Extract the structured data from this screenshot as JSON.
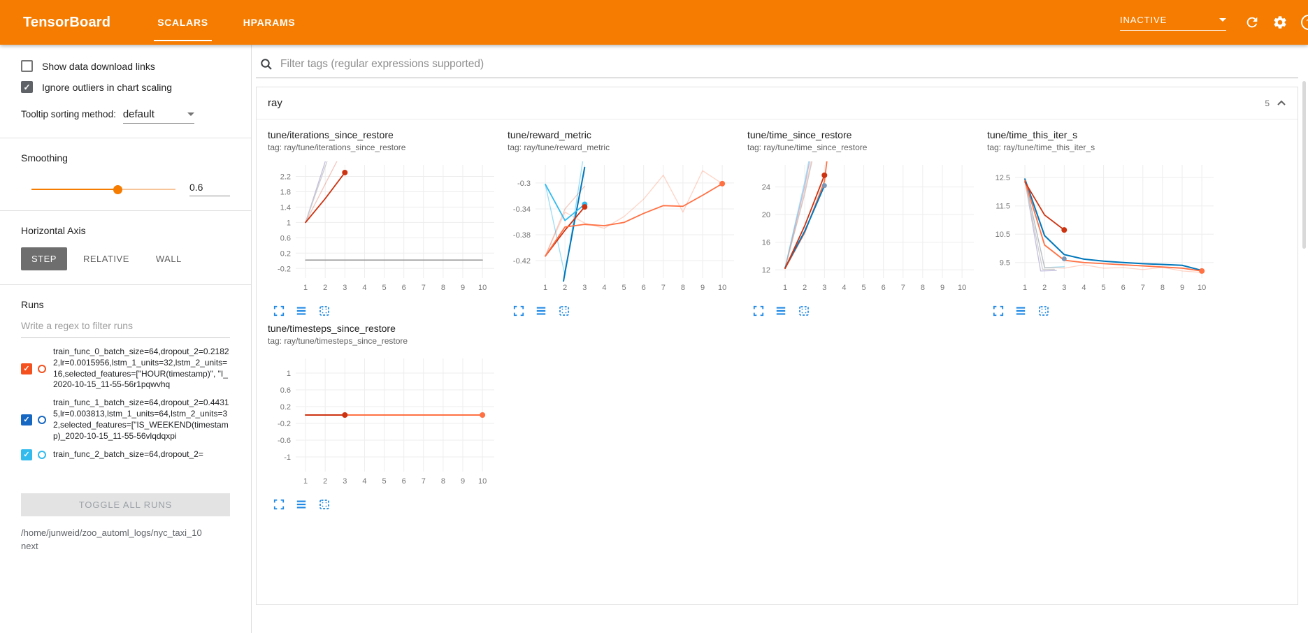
{
  "header": {
    "brand": "TensorBoard",
    "tabs": [
      {
        "label": "SCALARS",
        "active": true
      },
      {
        "label": "HPARAMS",
        "active": false
      }
    ],
    "status": "INACTIVE"
  },
  "colors": {
    "header_orange": "#f57c00",
    "icon_blue": "#1e88e5",
    "run_orange": "#ff7043",
    "run_blue": "#0077bb",
    "run_cyan": "#33bbee",
    "run_red": "#cc3311"
  },
  "sidebar": {
    "checkboxes": [
      {
        "label": "Show data download links",
        "checked": false
      },
      {
        "label": "Ignore outliers in chart scaling",
        "checked": true
      }
    ],
    "tooltip_sort": {
      "label": "Tooltip sorting method:",
      "value": "default"
    },
    "smoothing": {
      "label": "Smoothing",
      "value": "0.6",
      "percent": 60
    },
    "horizontal_axis": {
      "label": "Horizontal Axis",
      "options": [
        {
          "label": "STEP"
        },
        {
          "label": "RELATIVE"
        },
        {
          "label": "WALL"
        }
      ],
      "selected": "STEP"
    },
    "runs": {
      "label": "Runs",
      "filter_placeholder": "Write a regex to filter runs",
      "items": [
        {
          "name": "train_func_0_batch_size=64,dropout_2=0.21822,lr=0.0015956,lstm_1_units=32,lstm_2_units=16,selected_features=[\"HOUR(timestamp)\", \"I_2020-10-15_11-55-56r1pqwvhq",
          "color": "#f4511e",
          "checked": true
        },
        {
          "name": "train_func_1_batch_size=64,dropout_2=0.44315,lr=0.003813,lstm_1_units=64,lstm_2_units=32,selected_features=[\"IS_WEEKEND(timestamp)_2020-10-15_11-55-56vlqdqxpi",
          "color": "#1667c1",
          "checked": true
        },
        {
          "name": "train_func_2_batch_size=64,dropout_2=",
          "color": "#33bbee",
          "checked": true
        }
      ],
      "toggle_all": "TOGGLE ALL RUNS",
      "log_path": "/home/junweid/zoo_automl_logs/nyc_taxi_10next"
    }
  },
  "main": {
    "filter_placeholder": "Filter tags (regular expressions supported)",
    "group": {
      "name": "ray",
      "count": "5"
    }
  },
  "chart_data": [
    {
      "type": "line",
      "title": "tune/iterations_since_restore",
      "subtitle": "tag: ray/tune/iterations_since_restore",
      "xlabel": "",
      "ylabel": "",
      "xticks": [
        1,
        2,
        3,
        4,
        5,
        6,
        7,
        8,
        9,
        10
      ],
      "xlim": [
        0.5,
        10.6
      ],
      "ylim": [
        -0.45,
        2.5
      ],
      "yticks": [
        -0.2,
        0.2,
        0.6,
        1,
        1.4,
        1.8,
        2.2
      ],
      "series": [
        {
          "name": "gray-run",
          "color": "#8a8a8a",
          "opacity": 1,
          "width": 1.4,
          "points": [
            [
              1,
              0.02
            ],
            [
              10,
              0.02
            ]
          ]
        },
        {
          "name": "red-run-raw",
          "color": "#cc3311",
          "opacity": 0.28,
          "width": 1.3,
          "points": [
            [
              1,
              1
            ],
            [
              2,
              2
            ],
            [
              3,
              3
            ]
          ]
        },
        {
          "name": "lavender-run-raw",
          "color": "#b9b3d8",
          "opacity": 0.85,
          "width": 1.3,
          "points": [
            [
              1,
              1
            ],
            [
              1.95,
              2.5
            ],
            [
              2.6,
              3.6
            ]
          ]
        },
        {
          "name": "gray-run-raw",
          "color": "#c9c9c9",
          "opacity": 0.9,
          "width": 1.3,
          "points": [
            [
              1,
              1
            ],
            [
              2.1,
              2.6
            ],
            [
              2.75,
              3.6
            ]
          ]
        },
        {
          "name": "red-run-smoothed",
          "color": "#cc3311",
          "opacity": 1,
          "width": 1.8,
          "points": [
            [
              1,
              1
            ],
            [
              2,
              1.62
            ],
            [
              3,
              2.3
            ]
          ],
          "dot": true
        }
      ]
    },
    {
      "type": "line",
      "title": "tune/reward_metric",
      "subtitle": "tag: ray/tune/reward_metric",
      "xlabel": "",
      "ylabel": "",
      "xticks": [
        1,
        2,
        3,
        4,
        5,
        6,
        7,
        8,
        9,
        10
      ],
      "xlim": [
        0.5,
        10.6
      ],
      "ylim": [
        -0.447,
        -0.272
      ],
      "yticks": [
        -0.42,
        -0.38,
        -0.34,
        -0.3
      ],
      "series": [
        {
          "name": "orange-run-raw",
          "color": "#ff7043",
          "opacity": 0.3,
          "width": 1.3,
          "points": [
            [
              1,
              -0.413
            ],
            [
              2,
              -0.345
            ],
            [
              3,
              -0.362
            ],
            [
              4,
              -0.37
            ],
            [
              5,
              -0.352
            ],
            [
              6,
              -0.325
            ],
            [
              7,
              -0.288
            ],
            [
              8,
              -0.345
            ],
            [
              9,
              -0.281
            ],
            [
              10,
              -0.301
            ]
          ]
        },
        {
          "name": "cyan-run-raw",
          "color": "#33bbee",
          "opacity": 0.5,
          "width": 1.3,
          "points": [
            [
              1,
              -0.302
            ],
            [
              2,
              -0.443
            ],
            [
              3,
              -0.247
            ]
          ]
        },
        {
          "name": "red-run-raw",
          "color": "#cc3311",
          "opacity": 0.25,
          "width": 1.3,
          "points": [
            [
              1,
              -0.413
            ],
            [
              2,
              -0.34
            ],
            [
              3,
              -0.305
            ]
          ]
        },
        {
          "name": "blue-run-smoothed",
          "color": "#0077bb",
          "opacity": 1,
          "width": 2,
          "points": [
            [
              1,
              -0.62
            ],
            [
              2,
              -0.438
            ],
            [
              3,
              -0.276
            ]
          ]
        },
        {
          "name": "cyan-run-smoothed",
          "color": "#33bbee",
          "opacity": 1,
          "width": 1.8,
          "points": [
            [
              1,
              -0.302
            ],
            [
              2,
              -0.358
            ],
            [
              3,
              -0.333
            ]
          ],
          "dot": true
        },
        {
          "name": "red-run-smoothed",
          "color": "#cc3311",
          "opacity": 1,
          "width": 1.8,
          "points": [
            [
              1,
              -0.413
            ],
            [
              2,
              -0.373
            ],
            [
              3,
              -0.337
            ]
          ],
          "dot": true
        },
        {
          "name": "orange-run-smoothed",
          "color": "#ff7043",
          "opacity": 1,
          "width": 1.8,
          "points": [
            [
              1,
              -0.413
            ],
            [
              2,
              -0.368
            ],
            [
              3,
              -0.364
            ],
            [
              4,
              -0.366
            ],
            [
              5,
              -0.361
            ],
            [
              6,
              -0.347
            ],
            [
              7,
              -0.335
            ],
            [
              8,
              -0.336
            ],
            [
              9,
              -0.319
            ],
            [
              10,
              -0.301
            ]
          ],
          "dot": true
        }
      ]
    },
    {
      "type": "line",
      "title": "tune/time_since_restore",
      "subtitle": "tag: ray/tune/time_since_restore",
      "xlabel": "",
      "ylabel": "",
      "xticks": [
        1,
        2,
        3,
        4,
        5,
        6,
        7,
        8,
        9,
        10
      ],
      "xlim": [
        0.5,
        10.6
      ],
      "ylim": [
        10.8,
        27.2
      ],
      "yticks": [
        12,
        16,
        20,
        24
      ],
      "series": [
        {
          "name": "lavender-run-raw",
          "color": "#b9b3d8",
          "opacity": 0.85,
          "width": 1.3,
          "points": [
            [
              1,
              12.3
            ],
            [
              2,
              24.2
            ],
            [
              2.55,
              32
            ]
          ]
        },
        {
          "name": "gray-run-raw",
          "color": "#c9c9c9",
          "opacity": 0.9,
          "width": 1.3,
          "points": [
            [
              1,
              12.3
            ],
            [
              2,
              23
            ],
            [
              2.7,
              32
            ]
          ]
        },
        {
          "name": "cyan-run-raw",
          "color": "#33bbee",
          "opacity": 0.45,
          "width": 1.3,
          "points": [
            [
              1,
              12.4
            ],
            [
              2,
              24.8
            ],
            [
              2.5,
              32
            ]
          ]
        },
        {
          "name": "orange-run-raw",
          "color": "#ff7043",
          "opacity": 0.3,
          "width": 1.3,
          "points": [
            [
              1,
              12.2
            ],
            [
              2,
              23.5
            ],
            [
              2.65,
              32
            ]
          ]
        },
        {
          "name": "orange-run-smoothed",
          "color": "#ff7043",
          "opacity": 1,
          "width": 1.8,
          "points": [
            [
              1,
              12.2
            ],
            [
              2,
              17.4
            ],
            [
              3,
              24.8
            ],
            [
              3.3,
              32
            ]
          ]
        },
        {
          "name": "blue-run-smoothed",
          "color": "#0077bb",
          "opacity": 1,
          "width": 2,
          "points": [
            [
              1,
              12.3
            ],
            [
              2,
              17.6
            ],
            [
              3,
              24.2
            ]
          ]
        },
        {
          "name": "red-run-smoothed",
          "color": "#cc3311",
          "opacity": 1,
          "width": 1.8,
          "points": [
            [
              1,
              12.2
            ],
            [
              2,
              18.4
            ],
            [
              3,
              25.7
            ]
          ],
          "dot": true
        }
      ],
      "markers": [
        {
          "x": 3,
          "y": 24.2,
          "color": "#7b97b5"
        }
      ]
    },
    {
      "type": "line",
      "title": "tune/time_this_iter_s",
      "subtitle": "tag: ray/tune/time_this_iter_s",
      "xlabel": "",
      "ylabel": "",
      "xticks": [
        1,
        2,
        3,
        4,
        5,
        6,
        7,
        8,
        9,
        10
      ],
      "xlim": [
        0.5,
        10.6
      ],
      "ylim": [
        8.95,
        12.95
      ],
      "yticks": [
        9.5,
        10.5,
        11.5,
        12.5
      ],
      "series": [
        {
          "name": "lavender-run-raw",
          "color": "#b9b3d8",
          "opacity": 0.85,
          "width": 1.3,
          "points": [
            [
              1,
              12.4
            ],
            [
              1.8,
              9.2
            ],
            [
              2.6,
              9.22
            ]
          ]
        },
        {
          "name": "cyan-run-raw",
          "color": "#33bbee",
          "opacity": 0.5,
          "width": 1.3,
          "points": [
            [
              1,
              12.45
            ],
            [
              2,
              9.32
            ],
            [
              3,
              9.35
            ]
          ]
        },
        {
          "name": "gray-run-raw",
          "color": "#c9c9c9",
          "opacity": 0.9,
          "width": 1.3,
          "points": [
            [
              1,
              12.35
            ],
            [
              1.9,
              9.26
            ],
            [
              2.5,
              9.26
            ]
          ]
        },
        {
          "name": "orange-run-raw",
          "color": "#ff7043",
          "opacity": 0.3,
          "width": 1.3,
          "points": [
            [
              1,
              12.4
            ],
            [
              2,
              9.33
            ],
            [
              3,
              9.3
            ],
            [
              4,
              9.42
            ],
            [
              5,
              9.3
            ],
            [
              6,
              9.32
            ],
            [
              7,
              9.25
            ],
            [
              8,
              9.33
            ],
            [
              9,
              9.2
            ],
            [
              10,
              9.15
            ]
          ]
        },
        {
          "name": "blue-run-smoothed",
          "color": "#0077bb",
          "opacity": 1,
          "width": 2,
          "points": [
            [
              1,
              12.45
            ],
            [
              2,
              10.45
            ],
            [
              3,
              9.78
            ],
            [
              4,
              9.62
            ],
            [
              5,
              9.55
            ],
            [
              6,
              9.5
            ],
            [
              7,
              9.46
            ],
            [
              8,
              9.43
            ],
            [
              9,
              9.4
            ],
            [
              10,
              9.22
            ]
          ]
        },
        {
          "name": "orange-run-smoothed",
          "color": "#ff7043",
          "opacity": 1,
          "width": 1.8,
          "points": [
            [
              1,
              12.4
            ],
            [
              2,
              10.12
            ],
            [
              3,
              9.58
            ],
            [
              4,
              9.5
            ],
            [
              5,
              9.46
            ],
            [
              6,
              9.42
            ],
            [
              7,
              9.38
            ],
            [
              8,
              9.34
            ],
            [
              9,
              9.3
            ],
            [
              10,
              9.2
            ]
          ],
          "dot": true
        },
        {
          "name": "red-run-smoothed",
          "color": "#cc3311",
          "opacity": 1,
          "width": 1.8,
          "points": [
            [
              1,
              12.35
            ],
            [
              2,
              11.18
            ],
            [
              3,
              10.65
            ]
          ],
          "dot": true
        }
      ],
      "markers": [
        {
          "x": 3,
          "y": 9.63,
          "color": "#7b97b5"
        }
      ]
    },
    {
      "type": "line",
      "title": "tune/timesteps_since_restore",
      "subtitle": "tag: ray/tune/timesteps_since_restore",
      "xlabel": "",
      "ylabel": "",
      "xticks": [
        1,
        2,
        3,
        4,
        5,
        6,
        7,
        8,
        9,
        10
      ],
      "xlim": [
        0.5,
        10.6
      ],
      "ylim": [
        -1.35,
        1.35
      ],
      "yticks": [
        -1,
        -0.6,
        -0.2,
        0.2,
        0.6,
        1
      ],
      "series": [
        {
          "name": "gray-run",
          "color": "#8a8a8a",
          "opacity": 1,
          "width": 1.4,
          "points": [
            [
              1,
              0
            ],
            [
              10,
              0
            ]
          ]
        },
        {
          "name": "orange-run-smoothed",
          "color": "#ff7043",
          "opacity": 1,
          "width": 2,
          "points": [
            [
              1,
              0
            ],
            [
              10,
              0
            ]
          ],
          "dot": true
        },
        {
          "name": "red-run-smoothed",
          "color": "#cc3311",
          "opacity": 1,
          "width": 2,
          "points": [
            [
              1,
              0
            ],
            [
              3,
              0
            ]
          ],
          "dot": true
        }
      ]
    }
  ]
}
